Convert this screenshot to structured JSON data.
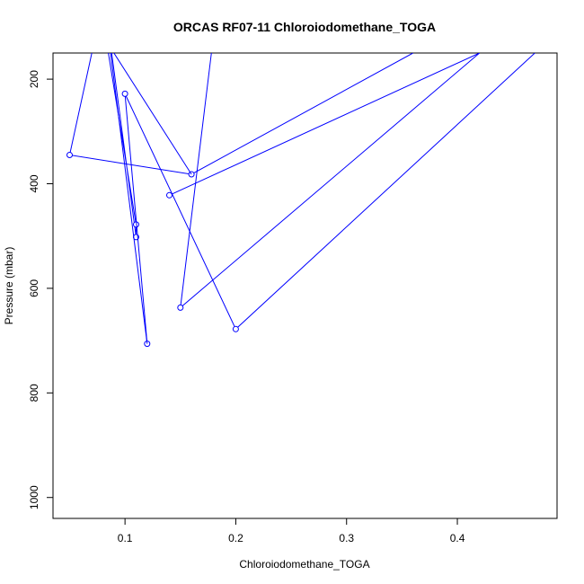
{
  "chart_data": {
    "type": "line",
    "title": "ORCAS RF07-11 Chloroiodomethane_TOGA",
    "xlabel": "Chloroiodomethane_TOGA",
    "ylabel": "Pressure (mbar)",
    "xlim": [
      0.035,
      0.49
    ],
    "ylim": [
      1040,
      150
    ],
    "y_reversed": true,
    "x_ticks": [
      0.1,
      0.2,
      0.3,
      0.4
    ],
    "x_tick_labels": [
      "0.1",
      "0.2",
      "0.3",
      "0.4"
    ],
    "y_ticks": [
      200,
      400,
      600,
      800,
      1000
    ],
    "y_tick_labels": [
      "200",
      "400",
      "600",
      "800",
      "1000"
    ],
    "grid": false,
    "legend": "none",
    "color": "#0000ff",
    "series": [
      {
        "points": [
          {
            "x": 0.14,
            "y": 422,
            "marker": true
          },
          {
            "x": 0.42,
            "y": 150,
            "marker": false
          }
        ]
      },
      {
        "points": [
          {
            "x": 0.36,
            "y": 150,
            "marker": false
          },
          {
            "x": 0.16,
            "y": 382,
            "marker": true
          },
          {
            "x": 0.05,
            "y": 345,
            "marker": true
          },
          {
            "x": 0.07,
            "y": 150,
            "marker": false
          }
        ]
      },
      {
        "points": [
          {
            "x": 0.178,
            "y": 150,
            "marker": false
          },
          {
            "x": 0.15,
            "y": 637,
            "marker": true
          },
          {
            "x": 0.42,
            "y": 150,
            "marker": false
          }
        ]
      },
      {
        "points": [
          {
            "x": 0.09,
            "y": 150,
            "marker": false
          },
          {
            "x": 0.16,
            "y": 382,
            "marker": false
          }
        ]
      },
      {
        "points": [
          {
            "x": 0.085,
            "y": 150,
            "marker": false
          },
          {
            "x": 0.11,
            "y": 478,
            "marker": true
          },
          {
            "x": 0.11,
            "y": 502,
            "marker": true
          },
          {
            "x": 0.088,
            "y": 150,
            "marker": false
          }
        ]
      },
      {
        "points": [
          {
            "x": 0.087,
            "y": 150,
            "marker": false
          },
          {
            "x": 0.12,
            "y": 706,
            "marker": true
          }
        ]
      },
      {
        "points": [
          {
            "x": 0.12,
            "y": 706,
            "marker": false
          },
          {
            "x": 0.1,
            "y": 228,
            "marker": true
          },
          {
            "x": 0.2,
            "y": 678,
            "marker": true
          },
          {
            "x": 0.47,
            "y": 150,
            "marker": false
          }
        ]
      }
    ]
  }
}
